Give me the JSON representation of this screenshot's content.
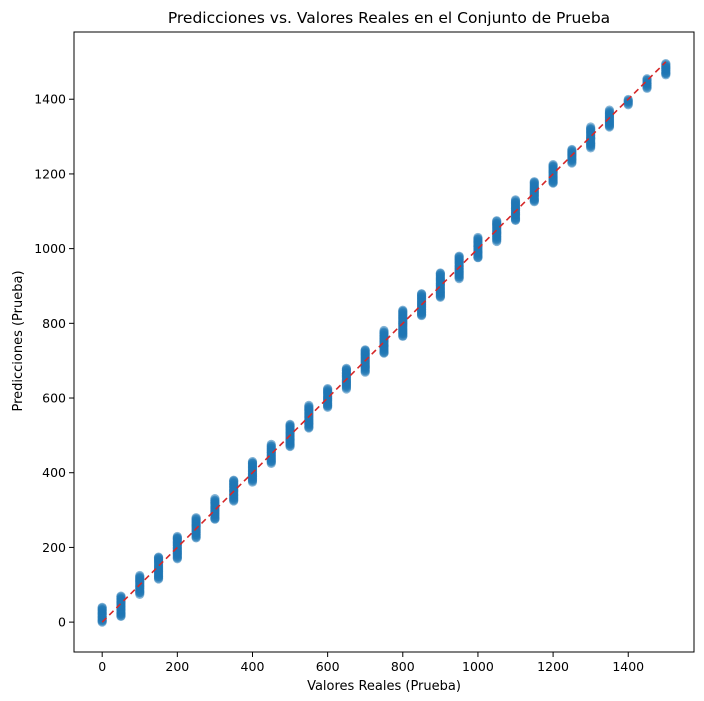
{
  "chart_data": {
    "type": "scatter",
    "title": "Predicciones vs. Valores Reales en el Conjunto de Prueba",
    "xlabel": "Valores Reales (Prueba)",
    "ylabel": "Predicciones (Prueba)",
    "xlim": [
      -75,
      1575
    ],
    "ylim": [
      -80,
      1580
    ],
    "xticks": [
      0,
      200,
      400,
      600,
      800,
      1000,
      1200,
      1400
    ],
    "yticks": [
      0,
      200,
      400,
      600,
      800,
      1000,
      1200,
      1400
    ],
    "grid": false,
    "point_color": "#1f77b4",
    "point_alpha": 0.55,
    "reference_line": {
      "from": [
        0,
        0
      ],
      "to": [
        1500,
        1500
      ],
      "color": "#d62728",
      "style": "dashed"
    },
    "clusters": [
      {
        "x": 0,
        "y_min": 0,
        "y_max": 40
      },
      {
        "x": 50,
        "y_min": 15,
        "y_max": 70
      },
      {
        "x": 100,
        "y_min": 75,
        "y_max": 125
      },
      {
        "x": 150,
        "y_min": 115,
        "y_max": 175
      },
      {
        "x": 200,
        "y_min": 170,
        "y_max": 230
      },
      {
        "x": 250,
        "y_min": 225,
        "y_max": 280
      },
      {
        "x": 300,
        "y_min": 275,
        "y_max": 330
      },
      {
        "x": 350,
        "y_min": 325,
        "y_max": 380
      },
      {
        "x": 400,
        "y_min": 375,
        "y_max": 430
      },
      {
        "x": 450,
        "y_min": 425,
        "y_max": 475
      },
      {
        "x": 500,
        "y_min": 470,
        "y_max": 530
      },
      {
        "x": 550,
        "y_min": 520,
        "y_max": 580
      },
      {
        "x": 600,
        "y_min": 575,
        "y_max": 625
      },
      {
        "x": 650,
        "y_min": 625,
        "y_max": 680
      },
      {
        "x": 700,
        "y_min": 670,
        "y_max": 730
      },
      {
        "x": 750,
        "y_min": 720,
        "y_max": 780
      },
      {
        "x": 800,
        "y_min": 765,
        "y_max": 835
      },
      {
        "x": 850,
        "y_min": 820,
        "y_max": 880
      },
      {
        "x": 900,
        "y_min": 870,
        "y_max": 935
      },
      {
        "x": 950,
        "y_min": 920,
        "y_max": 980
      },
      {
        "x": 1000,
        "y_min": 975,
        "y_max": 1030
      },
      {
        "x": 1050,
        "y_min": 1020,
        "y_max": 1075
      },
      {
        "x": 1100,
        "y_min": 1075,
        "y_max": 1130
      },
      {
        "x": 1150,
        "y_min": 1125,
        "y_max": 1180
      },
      {
        "x": 1200,
        "y_min": 1175,
        "y_max": 1225
      },
      {
        "x": 1250,
        "y_min": 1230,
        "y_max": 1265
      },
      {
        "x": 1300,
        "y_min": 1270,
        "y_max": 1325
      },
      {
        "x": 1350,
        "y_min": 1325,
        "y_max": 1370
      },
      {
        "x": 1400,
        "y_min": 1385,
        "y_max": 1400
      },
      {
        "x": 1450,
        "y_min": 1430,
        "y_max": 1455
      },
      {
        "x": 1500,
        "y_min": 1465,
        "y_max": 1495
      }
    ]
  }
}
